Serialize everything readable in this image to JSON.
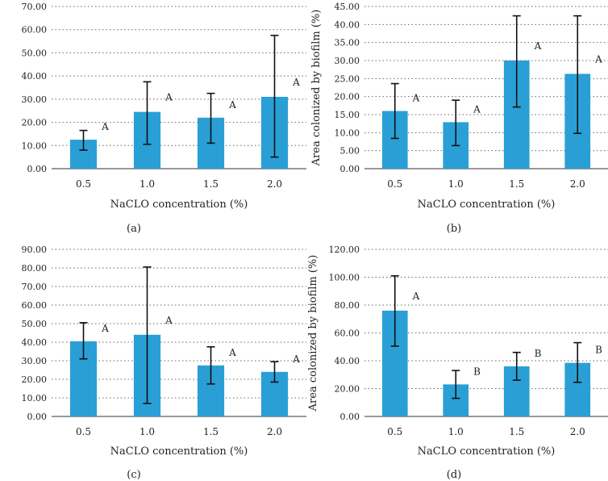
{
  "colors": {
    "bar": "#2a9fd6",
    "error_bar": "#111111",
    "grid": "#666666"
  },
  "chart_data": [
    {
      "type": "bar",
      "panel": "(a)",
      "title": "",
      "xlabel": "NaCLO concentration (%)",
      "ylabel": "",
      "categories": [
        "0.5",
        "1.0",
        "1.5",
        "2.0"
      ],
      "values": [
        12.5,
        24.5,
        22.0,
        31.0
      ],
      "error_low": [
        8.0,
        10.5,
        11.0,
        5.0
      ],
      "error_high": [
        16.5,
        37.5,
        32.5,
        57.5
      ],
      "significance": [
        "A",
        "A",
        "A",
        "A"
      ],
      "ylim": [
        0,
        70
      ],
      "yticks": [
        "0.00",
        "10.00",
        "20.00",
        "30.00",
        "40.00",
        "50.00",
        "60.00",
        "70.00"
      ],
      "grid": true
    },
    {
      "type": "bar",
      "panel": "(b)",
      "title": "",
      "xlabel": "NaCLO concentration (%)",
      "ylabel": "Area colonized by biofilm (%)",
      "categories": [
        "0.5",
        "1.0",
        "1.5",
        "2.0"
      ],
      "values": [
        16.0,
        12.9,
        30.0,
        26.3
      ],
      "error_low": [
        8.4,
        6.4,
        17.1,
        9.8
      ],
      "error_high": [
        23.6,
        19.0,
        42.4,
        42.4
      ],
      "significance": [
        "A",
        "A",
        "A",
        "A"
      ],
      "ylim": [
        0,
        45
      ],
      "yticks": [
        "0.00",
        "5.00",
        "10.00",
        "15.00",
        "20.00",
        "25.00",
        "30.00",
        "35.00",
        "40.00",
        "45.00"
      ],
      "grid": true
    },
    {
      "type": "bar",
      "panel": "(c)",
      "title": "",
      "xlabel": "NaCLO concentration (%)",
      "ylabel": "",
      "categories": [
        "0.5",
        "1.0",
        "1.5",
        "2.0"
      ],
      "values": [
        40.5,
        44.0,
        27.5,
        24.0
      ],
      "error_low": [
        31.0,
        7.0,
        17.5,
        18.5
      ],
      "error_high": [
        50.5,
        80.5,
        37.5,
        29.5
      ],
      "significance": [
        "A",
        "A",
        "A",
        "A"
      ],
      "ylim": [
        0,
        90
      ],
      "yticks": [
        "0.00",
        "10.00",
        "20.00",
        "30.00",
        "40.00",
        "50.00",
        "60.00",
        "70.00",
        "80.00",
        "90.00"
      ],
      "grid": true
    },
    {
      "type": "bar",
      "panel": "(d)",
      "title": "",
      "xlabel": "NaCLO concentration (%)",
      "ylabel": "Area colonized by biofilm (%)",
      "categories": [
        "0.5",
        "1.0",
        "1.5",
        "2.0"
      ],
      "values": [
        76.0,
        23.0,
        36.0,
        38.5
      ],
      "error_low": [
        50.5,
        13.0,
        26.0,
        24.5
      ],
      "error_high": [
        101.0,
        33.0,
        46.0,
        53.0
      ],
      "significance": [
        "A",
        "B",
        "B",
        "B"
      ],
      "ylim": [
        0,
        120
      ],
      "yticks": [
        "0.00",
        "20.00",
        "40.00",
        "60.00",
        "80.00",
        "100.00",
        "120.00"
      ],
      "grid": true
    }
  ]
}
